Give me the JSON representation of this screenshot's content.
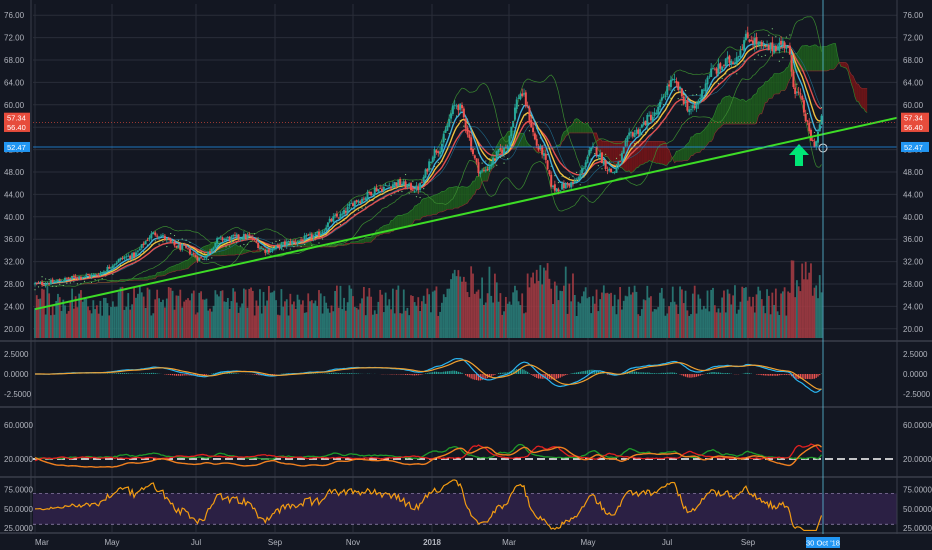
{
  "colors": {
    "background": "#131722",
    "grid": "#2a2e39",
    "separator": "#3a3e4a",
    "candle_up": "#26a69a",
    "candle_down": "#ef5350",
    "volume_up": "#2a7c78",
    "volume_down": "#a23b43",
    "trendline": "#3ddc26",
    "cloud_bull": "#1f5f1c",
    "cloud_bear": "#7a1416",
    "ema_fast": "#f0c040",
    "ema_mid": "#3fb0d8",
    "ema_slow": "#e05050",
    "macd_line": "#2ab5f0",
    "macd_signal": "#f0a030",
    "adx_line": "#f08020",
    "di_plus": "#1f9a2a",
    "di_minus": "#e02020",
    "rsi_line": "#f39c12",
    "rsi_band": "#2b2044",
    "price_tag_red": "#e74c3c",
    "price_tag_blue": "#2196f3",
    "arrow": "#00e676"
  },
  "arrow_icon": "up-arrow-icon",
  "chart_data": [
    {
      "type": "candlestick",
      "pane": "price",
      "ylim": [
        18,
        78
      ],
      "y_ticks": [
        "76.00",
        "72.00",
        "68.00",
        "64.00",
        "60.00",
        "56.00",
        "52.00",
        "48.00",
        "44.00",
        "40.00",
        "36.00",
        "32.00",
        "28.00",
        "24.00",
        "20.00"
      ],
      "x_ticks": [
        "Mar",
        "May",
        "Jul",
        "Sep",
        "Nov",
        "2018",
        "Mar",
        "May",
        "Jul",
        "Sep"
      ],
      "x_cursor_label": "30 Oct '18",
      "price_tags": [
        {
          "label": "57.34",
          "value": 57.34,
          "color": "red"
        },
        {
          "label": "56.40",
          "value": 56.4,
          "color": "red"
        },
        {
          "label": "52.47",
          "value": 52.47,
          "color": "blue"
        }
      ],
      "trendline": {
        "from": [
          "2017-03-01",
          23.5
        ],
        "to": [
          "2018-11-15",
          55.5
        ]
      },
      "close_anchors": [
        [
          "2017-03-01",
          28
        ],
        [
          "2017-04-15",
          29.5
        ],
        [
          "2017-05-15",
          33
        ],
        [
          "2017-06-01",
          37
        ],
        [
          "2017-06-20",
          34.5
        ],
        [
          "2017-07-05",
          32.5
        ],
        [
          "2017-07-20",
          36
        ],
        [
          "2017-08-10",
          36.5
        ],
        [
          "2017-08-25",
          34
        ],
        [
          "2017-09-15",
          35.5
        ],
        [
          "2017-10-01",
          36.5
        ],
        [
          "2017-10-20",
          40
        ],
        [
          "2017-11-05",
          43
        ],
        [
          "2017-11-20",
          45
        ],
        [
          "2017-12-05",
          46
        ],
        [
          "2017-12-20",
          45
        ],
        [
          "2018-01-05",
          52
        ],
        [
          "2018-01-20",
          60
        ],
        [
          "2018-02-08",
          48
        ],
        [
          "2018-02-25",
          52
        ],
        [
          "2018-03-10",
          62
        ],
        [
          "2018-03-25",
          52
        ],
        [
          "2018-04-05",
          45
        ],
        [
          "2018-04-20",
          46
        ],
        [
          "2018-05-05",
          52
        ],
        [
          "2018-05-20",
          48
        ],
        [
          "2018-06-05",
          55
        ],
        [
          "2018-06-20",
          58
        ],
        [
          "2018-07-05",
          64
        ],
        [
          "2018-07-20",
          59
        ],
        [
          "2018-08-05",
          66
        ],
        [
          "2018-08-20",
          68
        ],
        [
          "2018-09-01",
          72
        ],
        [
          "2018-09-15",
          70
        ],
        [
          "2018-10-01",
          71
        ],
        [
          "2018-10-10",
          62
        ],
        [
          "2018-10-24",
          53
        ],
        [
          "2018-10-30",
          57.34
        ]
      ],
      "volume": {
        "ylim": [
          0,
          100
        ],
        "note": "relative volume"
      }
    },
    {
      "type": "line",
      "pane": "macd",
      "ylim": [
        -4,
        4
      ],
      "y_ticks": [
        "2.5000",
        "0.0000",
        "-2.5000"
      ],
      "y_tick_values": [
        2.5,
        0,
        -2.5
      ],
      "series": [
        {
          "values_anchor": "macd"
        },
        {
          "values_anchor": "signal"
        }
      ]
    },
    {
      "type": "line",
      "pane": "adx",
      "ylim": [
        0,
        80
      ],
      "y_ticks": [
        "60.0000",
        "20.0000"
      ],
      "y_tick_values": [
        60,
        20
      ],
      "reference_line": 20
    },
    {
      "type": "line",
      "pane": "rsi",
      "ylim": [
        20,
        90
      ],
      "y_ticks": [
        "75.0000",
        "50.0000",
        "25.0000"
      ],
      "y_tick_values": [
        75,
        50,
        25
      ],
      "band": [
        30,
        70
      ]
    }
  ]
}
